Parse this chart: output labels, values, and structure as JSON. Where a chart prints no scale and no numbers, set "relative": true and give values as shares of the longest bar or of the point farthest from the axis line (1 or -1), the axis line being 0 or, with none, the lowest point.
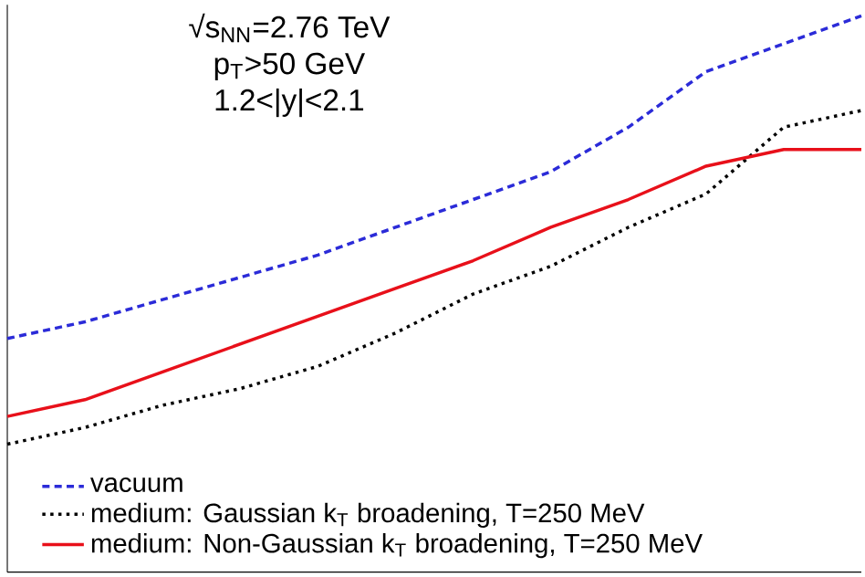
{
  "chart_data": {
    "type": "line",
    "relative": true,
    "categories": [
      null,
      null,
      null,
      null,
      null,
      null,
      null,
      null,
      null,
      null,
      null,
      null
    ],
    "annotations": [
      "√s$_{NN}$=2.76 TeV",
      "p$_{T}$>50 GeV",
      "1.2<|y|<2.1"
    ],
    "legend": "bottom left",
    "series": [
      {
        "name": "vacuum",
        "color": "#2b2bd8",
        "line_style": "dashed",
        "values": [
          0.42,
          0.45,
          0.49,
          0.53,
          0.57,
          0.62,
          0.67,
          0.72,
          0.8,
          0.9,
          0.95,
          1.0
        ]
      },
      {
        "name": "medium: Gaussian k$_{T}$ broadening, T=250 MeV",
        "color": "#000000",
        "line_style": "dotted",
        "values": [
          0.23,
          0.26,
          0.3,
          0.33,
          0.37,
          0.43,
          0.5,
          0.55,
          0.62,
          0.68,
          0.8,
          0.83
        ]
      },
      {
        "name": "medium: Non-Gaussian k$_{T}$ broadening, T=250 MeV",
        "color": "#e8101a",
        "line_style": "solid",
        "values": [
          0.28,
          0.31,
          0.36,
          0.41,
          0.46,
          0.51,
          0.56,
          0.62,
          0.67,
          0.73,
          0.76,
          0.76
        ]
      }
    ]
  }
}
